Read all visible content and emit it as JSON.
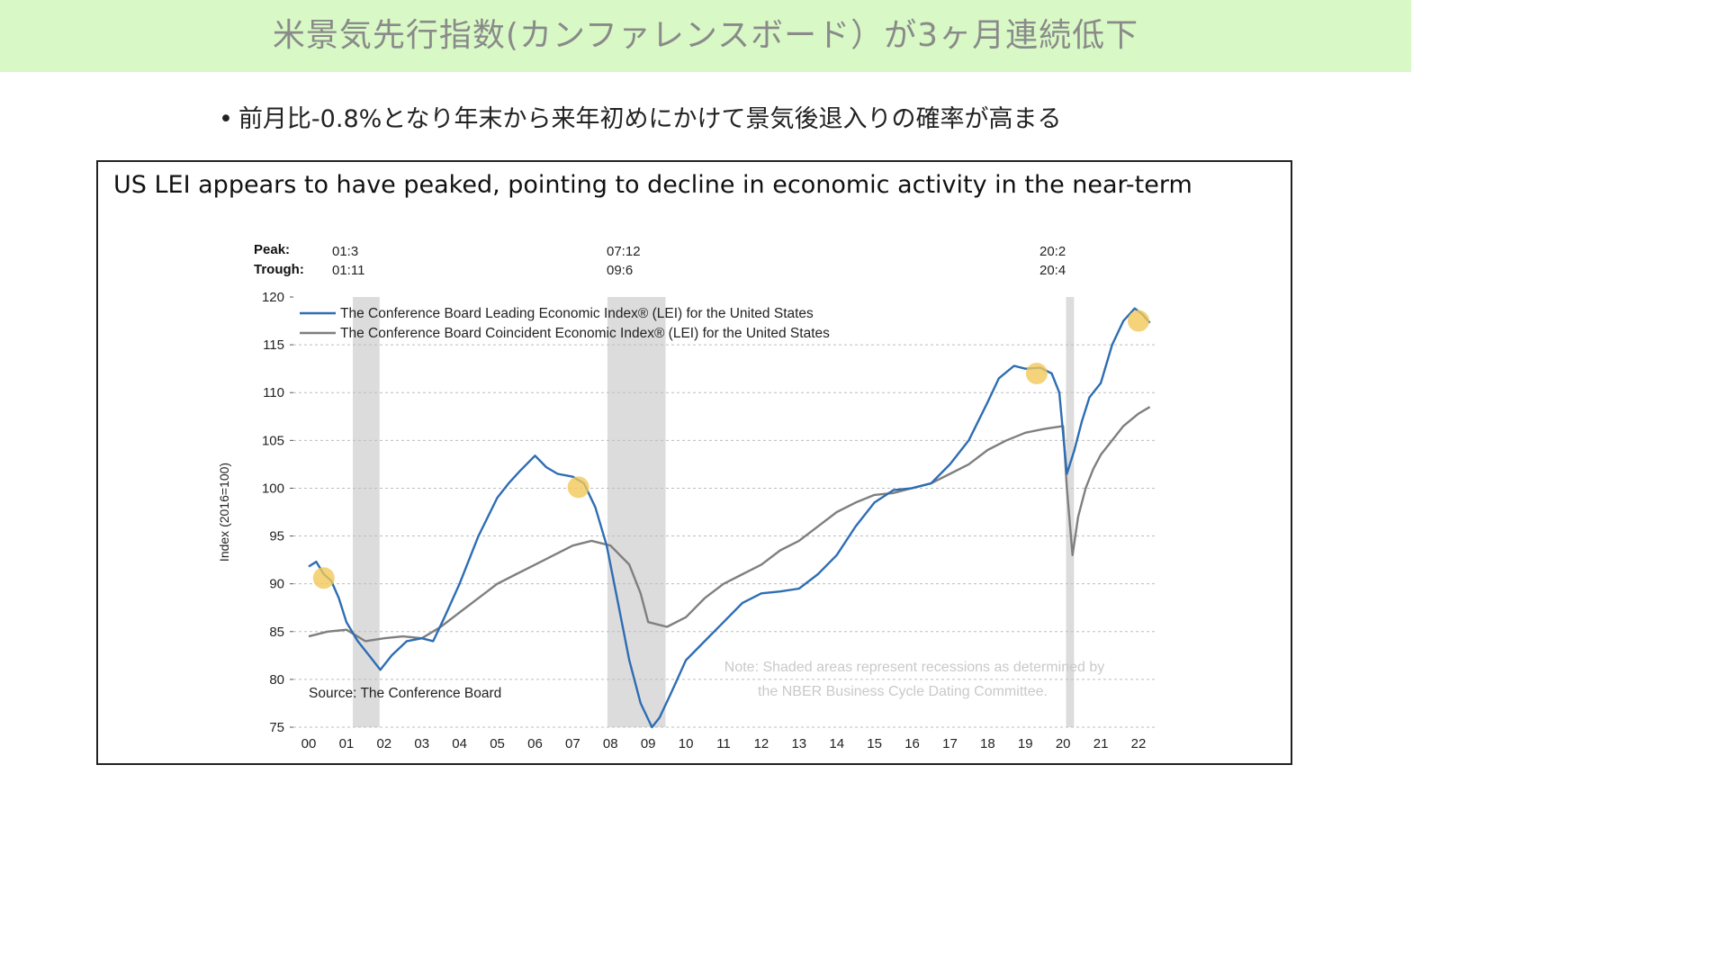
{
  "banner": {
    "title": "米景気先行指数(カンファレンスボード）が3ヶ月連続低下"
  },
  "bullet": {
    "text": "前月比-0.8%となり年末から来年初めにかけて景気後退入りの確率が高まる",
    "marker": "•"
  },
  "chart_data": {
    "type": "line",
    "title": "US LEI appears to have peaked, pointing to decline in economic activity in the near-term",
    "ylabel": "Index (2016=100)",
    "xlabel": "",
    "ylim": [
      75,
      120
    ],
    "yticks": [
      75,
      80,
      85,
      90,
      95,
      100,
      105,
      110,
      115,
      120
    ],
    "xticks": [
      "00",
      "01",
      "02",
      "03",
      "04",
      "05",
      "06",
      "07",
      "08",
      "09",
      "10",
      "11",
      "12",
      "13",
      "14",
      "15",
      "16",
      "17",
      "18",
      "19",
      "20",
      "21",
      "22"
    ],
    "grid": "horizontal-dashed",
    "legend_position": "top-left",
    "source": "Source: The Conference Board",
    "note_line1": "Note: Shaded areas represent recessions as determined by",
    "note_line2": "the NBER Business Cycle Dating Committee.",
    "peak_trough": {
      "peak_label": "Peak:",
      "trough_label": "Trough:",
      "items": [
        {
          "peak": "01:3",
          "trough": "01:11"
        },
        {
          "peak": "07:12",
          "trough": "09:6"
        },
        {
          "peak": "20:2",
          "trough": "20:4"
        }
      ]
    },
    "recessions": [
      [
        2001.17,
        2001.88
      ],
      [
        2007.92,
        2009.46
      ],
      [
        2020.08,
        2020.29
      ]
    ],
    "highlights": [
      [
        2000.4,
        90.6
      ],
      [
        2007.15,
        100.1
      ],
      [
        2019.3,
        112.0
      ],
      [
        2022.0,
        117.5
      ]
    ],
    "series": [
      {
        "name": "The Conference Board Leading Economic Index® (LEI) for the United States",
        "color": "#2e6db3",
        "x": [
          2000.0,
          2000.2,
          2000.4,
          2000.6,
          2000.8,
          2001.0,
          2001.3,
          2001.6,
          2001.9,
          2002.2,
          2002.6,
          2003.0,
          2003.3,
          2003.6,
          2004.0,
          2004.5,
          2005.0,
          2005.3,
          2005.6,
          2006.0,
          2006.3,
          2006.6,
          2007.0,
          2007.3,
          2007.6,
          2007.9,
          2008.2,
          2008.5,
          2008.8,
          2009.1,
          2009.3,
          2009.6,
          2010.0,
          2010.5,
          2011.0,
          2011.5,
          2012.0,
          2012.5,
          2013.0,
          2013.5,
          2014.0,
          2014.5,
          2015.0,
          2015.5,
          2016.0,
          2016.5,
          2017.0,
          2017.5,
          2018.0,
          2018.3,
          2018.7,
          2019.0,
          2019.4,
          2019.7,
          2019.9,
          2020.1,
          2020.3,
          2020.5,
          2020.7,
          2021.0,
          2021.3,
          2021.6,
          2021.9,
          2022.1,
          2022.3
        ],
        "y": [
          91.8,
          92.3,
          91.0,
          90.3,
          88.5,
          86.0,
          84.0,
          82.5,
          81.0,
          82.5,
          84.0,
          84.3,
          84.0,
          86.5,
          90.0,
          95.0,
          99.0,
          100.5,
          101.8,
          103.4,
          102.2,
          101.5,
          101.2,
          100.5,
          98.0,
          94.0,
          88.0,
          82.0,
          77.5,
          75.0,
          76.0,
          78.5,
          82.0,
          84.0,
          86.0,
          88.0,
          89.0,
          89.2,
          89.5,
          91.0,
          93.0,
          96.0,
          98.5,
          99.8,
          100.0,
          100.5,
          102.5,
          105.0,
          109.0,
          111.5,
          112.8,
          112.5,
          112.6,
          112.0,
          110.0,
          101.5,
          104.0,
          107.0,
          109.5,
          111.0,
          115.0,
          117.5,
          118.8,
          118.2,
          117.3
        ]
      },
      {
        "name": "The Conference Board Coincident Economic Index® (LEI) for the United States",
        "color": "#7f7f7f",
        "x": [
          2000.0,
          2000.5,
          2001.0,
          2001.5,
          2002.0,
          2002.5,
          2003.0,
          2003.5,
          2004.0,
          2004.5,
          2005.0,
          2005.5,
          2006.0,
          2006.5,
          2007.0,
          2007.5,
          2008.0,
          2008.5,
          2008.8,
          2009.0,
          2009.5,
          2010.0,
          2010.5,
          2011.0,
          2011.5,
          2012.0,
          2012.5,
          2013.0,
          2013.5,
          2014.0,
          2014.5,
          2015.0,
          2015.5,
          2016.0,
          2016.5,
          2017.0,
          2017.5,
          2018.0,
          2018.5,
          2019.0,
          2019.5,
          2020.0,
          2020.1,
          2020.25,
          2020.4,
          2020.6,
          2020.8,
          2021.0,
          2021.3,
          2021.6,
          2022.0,
          2022.3
        ],
        "y": [
          84.5,
          85.0,
          85.2,
          84.0,
          84.3,
          84.5,
          84.3,
          85.5,
          87.0,
          88.5,
          90.0,
          91.0,
          92.0,
          93.0,
          94.0,
          94.5,
          94.0,
          92.0,
          89.0,
          86.0,
          85.5,
          86.5,
          88.5,
          90.0,
          91.0,
          92.0,
          93.5,
          94.5,
          96.0,
          97.5,
          98.5,
          99.3,
          99.5,
          100.0,
          100.5,
          101.5,
          102.5,
          104.0,
          105.0,
          105.8,
          106.2,
          106.5,
          100.0,
          93.0,
          97.0,
          100.0,
          102.0,
          103.5,
          105.0,
          106.5,
          107.8,
          108.5
        ]
      }
    ]
  }
}
